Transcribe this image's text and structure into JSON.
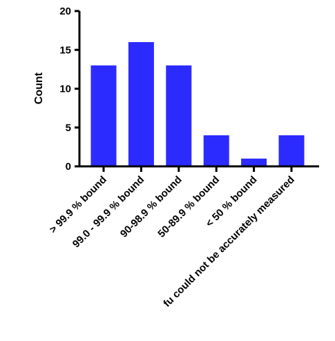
{
  "chart_data": {
    "type": "bar",
    "categories": [
      "> 99.9 % bound",
      "99.0 - 99.9 % bound",
      "90-98.9 % bound",
      "50-89.9 % bound",
      "< 50 % bound",
      "fu could not be accurately measured"
    ],
    "values": [
      13,
      16,
      13,
      4,
      1,
      4
    ],
    "title": "",
    "xlabel": "",
    "ylabel": "Count",
    "ylim": [
      0,
      20
    ],
    "yticks": [
      "0",
      "5",
      "10",
      "15",
      "20"
    ],
    "grid": false,
    "legend": "none",
    "bar_color": "#2B2BFF"
  }
}
